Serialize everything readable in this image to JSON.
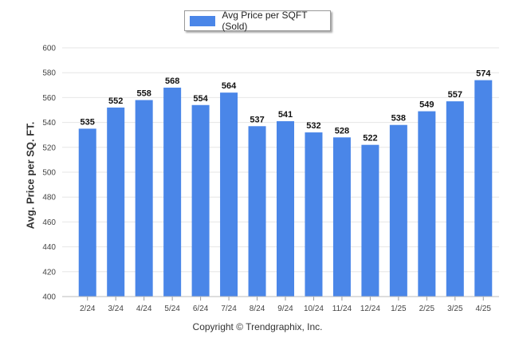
{
  "legend": {
    "label": "Avg Price per SQFT (Sold)",
    "color": "#4a86e8"
  },
  "footer": {
    "copyright": "Copyright © Trendgraphix, Inc."
  },
  "chart_data": {
    "type": "bar",
    "title": "",
    "xlabel": "",
    "ylabel": "Avg. Price per SQ. FT.",
    "ylim": [
      400,
      600
    ],
    "yticks": [
      400,
      420,
      440,
      460,
      480,
      500,
      520,
      540,
      560,
      580,
      600
    ],
    "grid": true,
    "legend_position": "top-center",
    "categories": [
      "2/24",
      "3/24",
      "4/24",
      "5/24",
      "6/24",
      "7/24",
      "8/24",
      "9/24",
      "10/24",
      "11/24",
      "12/24",
      "1/25",
      "2/25",
      "3/25",
      "4/25"
    ],
    "series": [
      {
        "name": "Avg Price per SQFT (Sold)",
        "color": "#4a86e8",
        "values": [
          535,
          552,
          558,
          568,
          554,
          564,
          537,
          541,
          532,
          528,
          522,
          538,
          549,
          557,
          574
        ]
      }
    ]
  }
}
